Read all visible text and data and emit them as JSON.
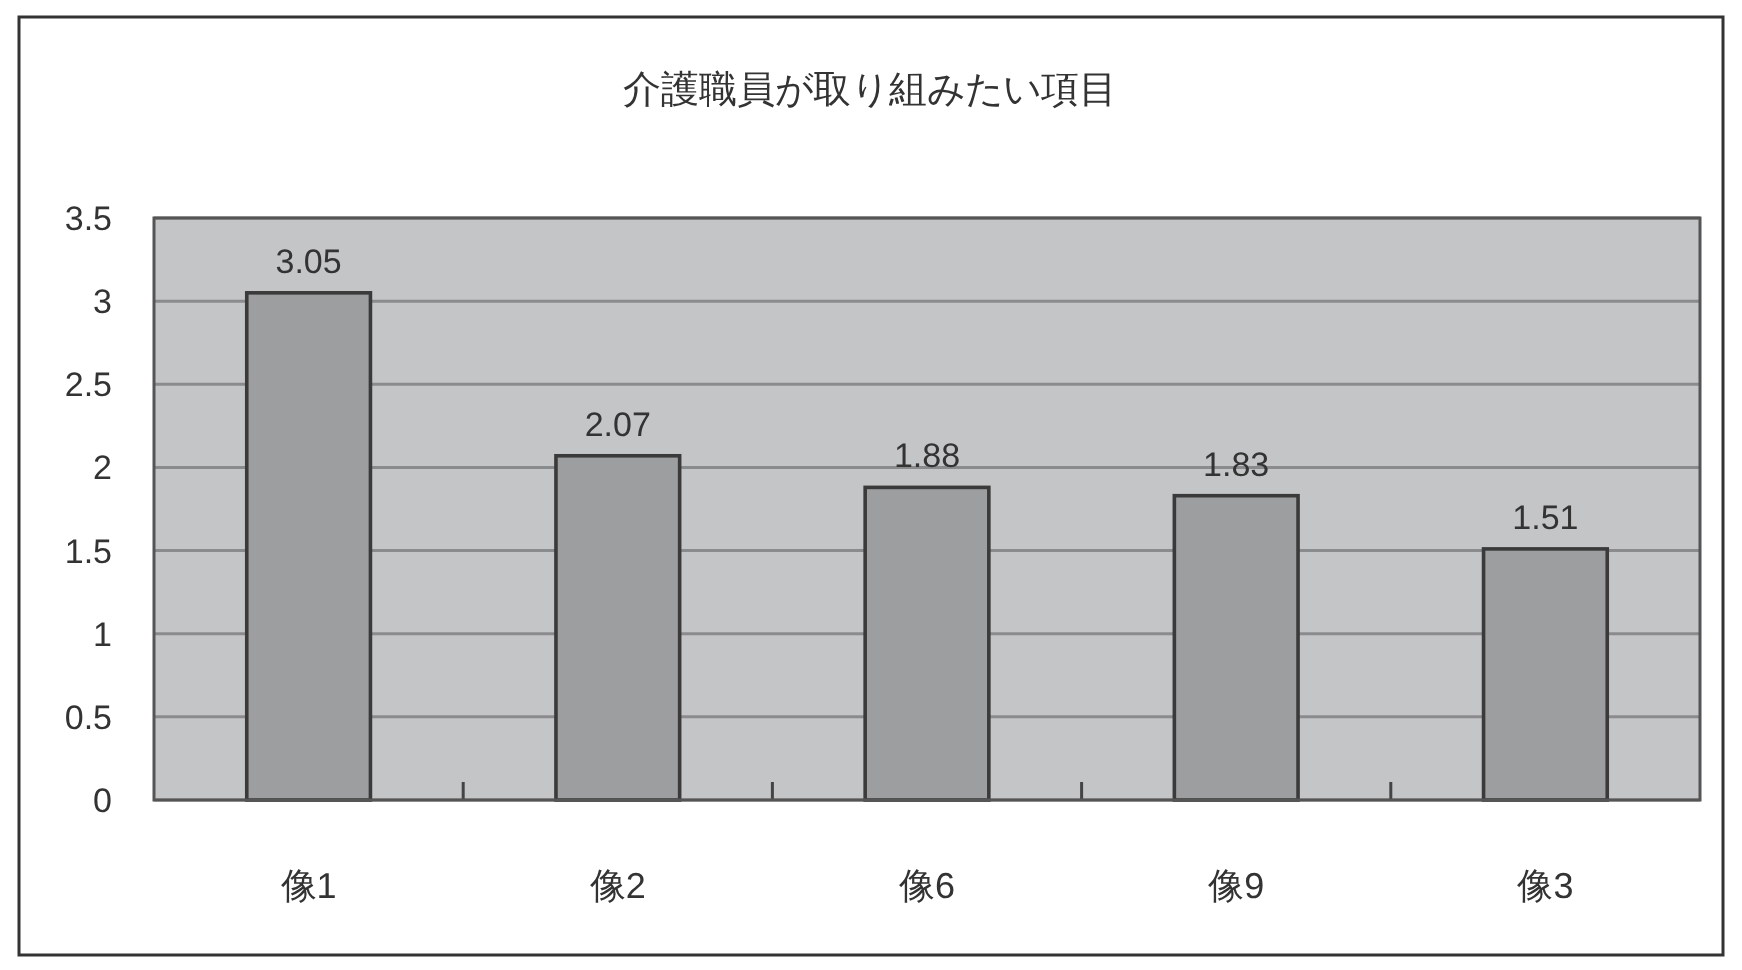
{
  "chart_data": {
    "type": "bar",
    "title": "介護職員が取り組みたい項目",
    "categories": [
      "像1",
      "像2",
      "像6",
      "像9",
      "像3"
    ],
    "values": [
      3.05,
      2.07,
      1.88,
      1.83,
      1.51
    ],
    "color": "#9d9ea0",
    "ylim": [
      0,
      3.5
    ],
    "yticks": [
      0,
      0.5,
      1,
      1.5,
      2,
      2.5,
      3,
      3.5
    ],
    "grid": "y",
    "data_labels": true
  }
}
